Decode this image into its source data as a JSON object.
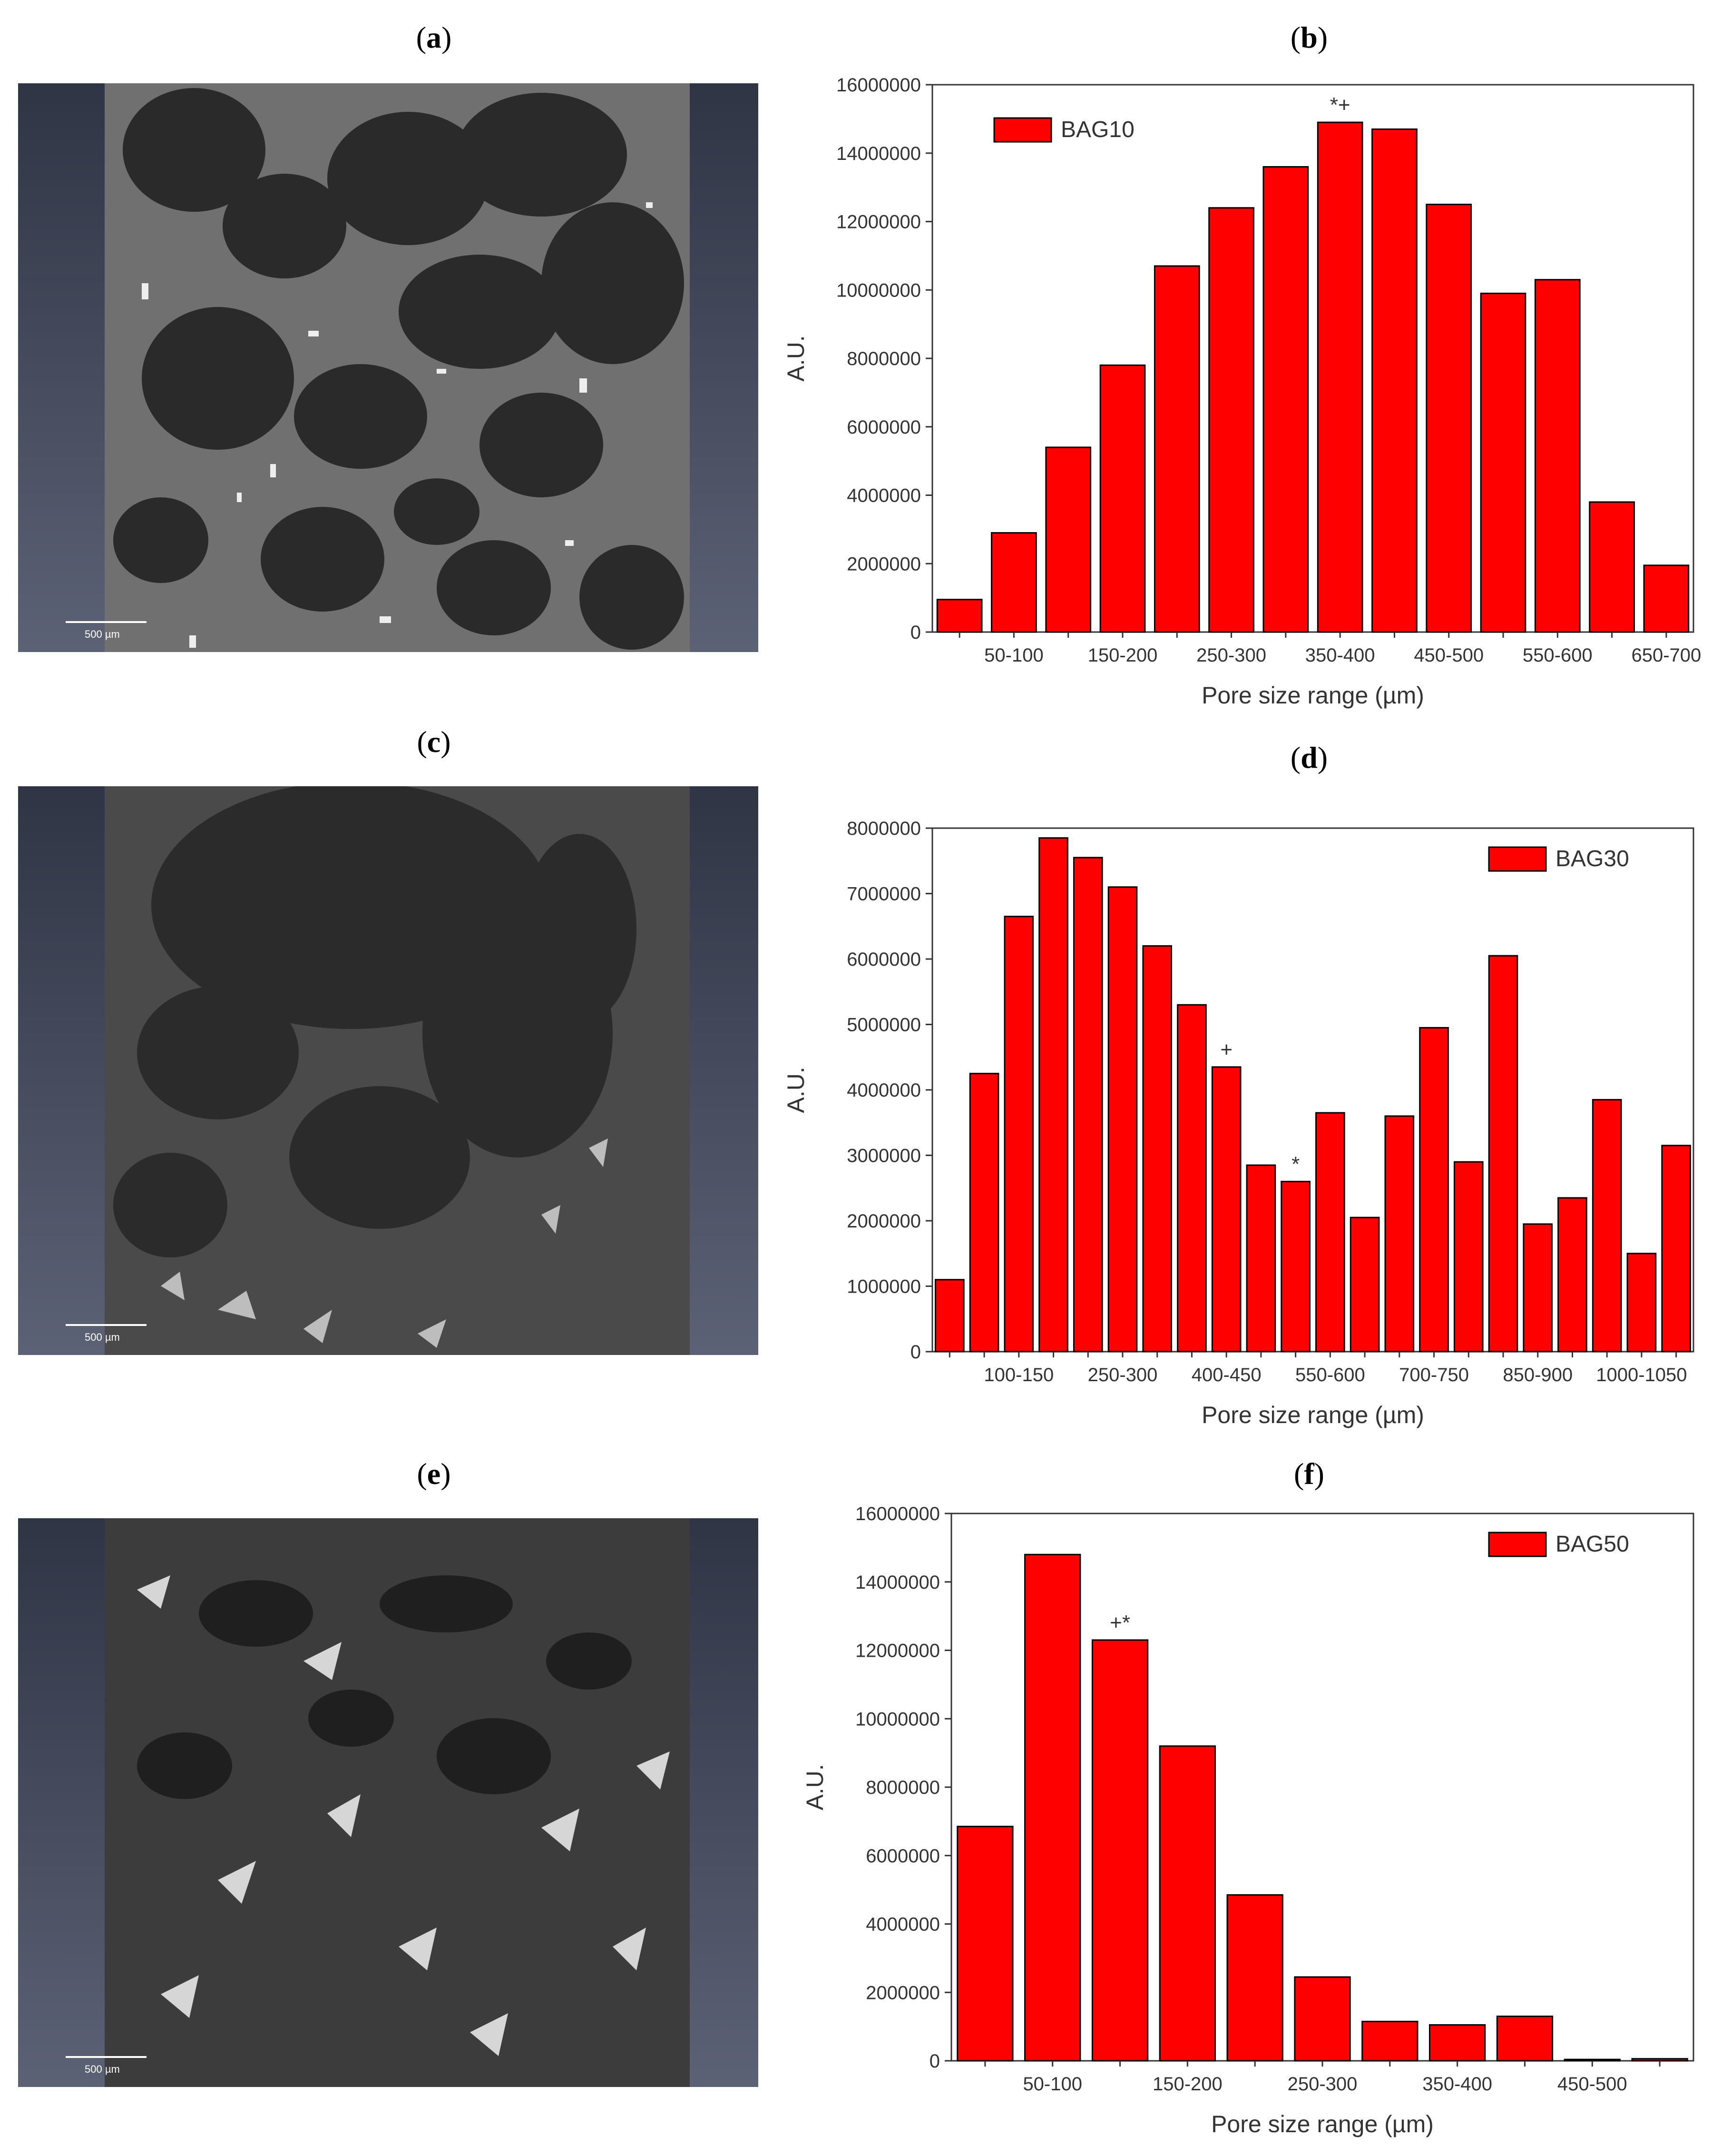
{
  "panels": {
    "a": "a",
    "b": "b",
    "c": "c",
    "d": "d",
    "e": "e",
    "f": "f"
  },
  "scale_bar_label": "500 µm",
  "colors": {
    "bar": "#ff0000",
    "bar_stroke": "#000000",
    "pore": "#2a2a2a",
    "matrix": "#6e6e6e",
    "glass": "#ededed",
    "frame_dark": "#2f3545",
    "frame_light": "#5c6275"
  },
  "chart_data": [
    {
      "type": "bar",
      "panel": "b",
      "legend": "BAG10",
      "legend_position": "top-left",
      "xlabel": "Pore size range (µm)",
      "ylabel": "A.U.",
      "ylim": [
        0,
        16000000
      ],
      "yticks": [
        0,
        2000000,
        4000000,
        6000000,
        8000000,
        10000000,
        12000000,
        14000000,
        16000000
      ],
      "categories": [
        "0-50",
        "50-100",
        "100-150",
        "150-200",
        "200-250",
        "250-300",
        "300-350",
        "350-400",
        "400-450",
        "450-500",
        "500-550",
        "550-600",
        "600-650",
        "650-700"
      ],
      "visible_tick_labels": [
        "",
        "50-100",
        "",
        "150-200",
        "",
        "250-300",
        "",
        "350-400",
        "",
        "450-500",
        "",
        "550-600",
        "",
        "650-700"
      ],
      "values": [
        950000,
        2900000,
        5400000,
        7800000,
        10700000,
        12400000,
        13600000,
        14900000,
        14700000,
        12500000,
        9900000,
        10300000,
        3800000,
        1950000
      ],
      "annotations": [
        {
          "category_index": 7,
          "text": "*+"
        }
      ]
    },
    {
      "type": "bar",
      "panel": "d",
      "legend": "BAG30",
      "legend_position": "top-right",
      "xlabel": "Pore size range (µm)",
      "ylabel": "A.U.",
      "ylim": [
        0,
        8000000
      ],
      "yticks": [
        0,
        1000000,
        2000000,
        3000000,
        4000000,
        5000000,
        6000000,
        7000000,
        8000000
      ],
      "categories": [
        "0-50",
        "50-100",
        "100-150",
        "150-200",
        "200-250",
        "250-300",
        "300-350",
        "350-400",
        "400-450",
        "450-500",
        "500-550",
        "550-600",
        "600-650",
        "650-700",
        "700-750",
        "750-800",
        "800-850",
        "850-900",
        "900-950",
        "950-1000",
        "1000-1050",
        "1050-1100"
      ],
      "visible_tick_labels": [
        "",
        "",
        "100-150",
        "",
        "",
        "250-300",
        "",
        "",
        "400-450",
        "",
        "",
        "550-600",
        "",
        "",
        "700-750",
        "",
        "",
        "850-900",
        "",
        "",
        "1000-1050",
        ""
      ],
      "values": [
        1100000,
        4250000,
        6650000,
        7850000,
        7550000,
        7100000,
        6200000,
        5300000,
        4350000,
        2850000,
        2600000,
        3650000,
        2050000,
        3600000,
        4950000,
        2900000,
        6050000,
        1950000,
        2350000,
        3850000,
        1500000,
        3150000
      ],
      "annotations": [
        {
          "category_index": 8,
          "text": "+"
        },
        {
          "category_index": 10,
          "text": "*"
        }
      ]
    },
    {
      "type": "bar",
      "panel": "f",
      "legend": "BAG50",
      "legend_position": "top-right",
      "xlabel": "Pore size range (µm)",
      "ylabel": "A.U.",
      "ylim": [
        0,
        16000000
      ],
      "yticks": [
        0,
        2000000,
        4000000,
        6000000,
        8000000,
        10000000,
        12000000,
        14000000,
        16000000
      ],
      "categories": [
        "0-50",
        "50-100",
        "100-150",
        "150-200",
        "200-250",
        "250-300",
        "300-350",
        "350-400",
        "400-450",
        "450-500",
        "500-550"
      ],
      "visible_tick_labels": [
        "",
        "50-100",
        "",
        "150-200",
        "",
        "250-300",
        "",
        "350-400",
        "",
        "450-500",
        ""
      ],
      "values": [
        6850000,
        14800000,
        12300000,
        9200000,
        4850000,
        2450000,
        1150000,
        1050000,
        1300000,
        40000,
        60000
      ],
      "annotations": [
        {
          "category_index": 2,
          "text": "+*"
        }
      ]
    }
  ]
}
